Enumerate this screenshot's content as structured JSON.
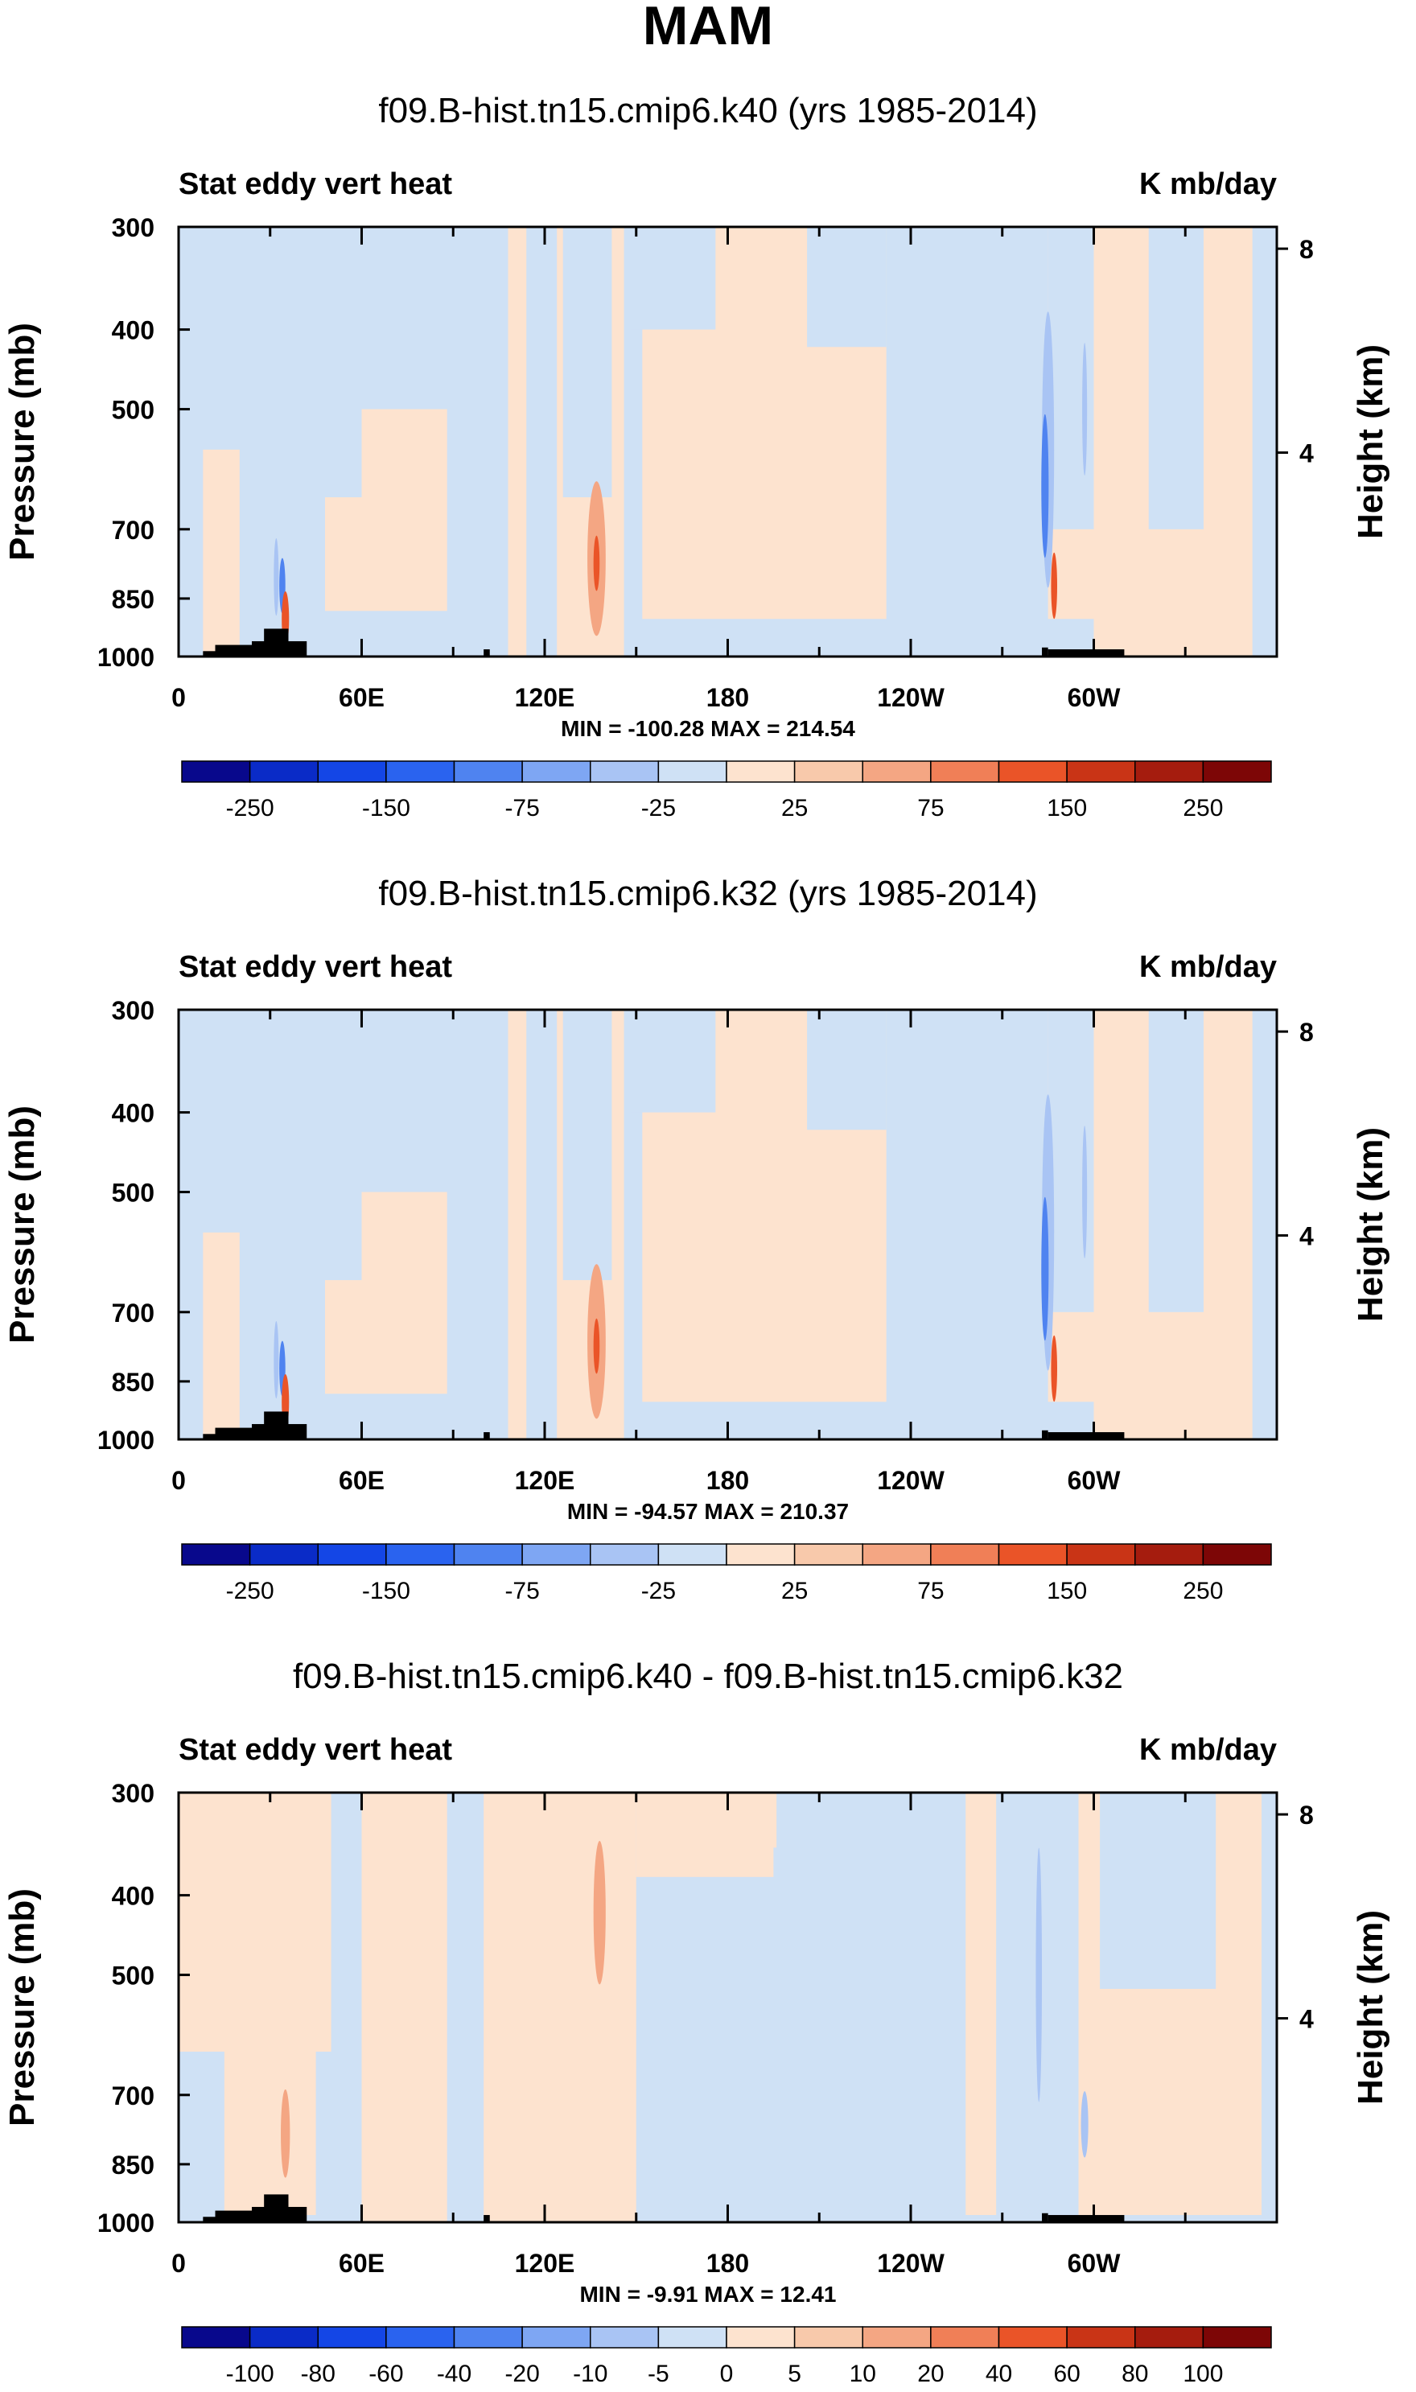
{
  "page_title": "MAM",
  "chart_data": [
    {
      "type": "heatmap",
      "title": "f09.B-hist.tn15.cmip6.k40 (yrs 1985-2014)",
      "left_label": "Stat eddy vert heat",
      "units": "K mb/day",
      "ylabel": "Pressure (mb)",
      "ylabel_right": "Height (km)",
      "x_ticks": [
        "0",
        "60E",
        "120E",
        "180",
        "120W",
        "60W"
      ],
      "x_tick_lon": [
        0,
        60,
        120,
        180,
        240,
        300
      ],
      "x_range": [
        0,
        360
      ],
      "y_ticks": [
        "300",
        "400",
        "500",
        "700",
        "850",
        "1000"
      ],
      "y_values": [
        300,
        400,
        500,
        700,
        850,
        1000
      ],
      "y_range": [
        300,
        1000
      ],
      "y_right_ticks": [
        "8",
        "4"
      ],
      "y_right_values": [
        8,
        4
      ],
      "stats": "MIN = -100.28   MAX = 214.54",
      "min": -100.28,
      "max": 214.54,
      "colorbar_labels": [
        "-250",
        "-150",
        "-75",
        "-25",
        "25",
        "75",
        "150",
        "250"
      ]
    },
    {
      "type": "heatmap",
      "title": "f09.B-hist.tn15.cmip6.k32 (yrs 1985-2014)",
      "left_label": "Stat eddy vert heat",
      "units": "K mb/day",
      "ylabel": "Pressure (mb)",
      "ylabel_right": "Height (km)",
      "x_ticks": [
        "0",
        "60E",
        "120E",
        "180",
        "120W",
        "60W"
      ],
      "x_tick_lon": [
        0,
        60,
        120,
        180,
        240,
        300
      ],
      "x_range": [
        0,
        360
      ],
      "y_ticks": [
        "300",
        "400",
        "500",
        "700",
        "850",
        "1000"
      ],
      "y_values": [
        300,
        400,
        500,
        700,
        850,
        1000
      ],
      "y_range": [
        300,
        1000
      ],
      "y_right_ticks": [
        "8",
        "4"
      ],
      "y_right_values": [
        8,
        4
      ],
      "stats": "MIN = -94.57   MAX = 210.37",
      "min": -94.57,
      "max": 210.37,
      "colorbar_labels": [
        "-250",
        "-150",
        "-75",
        "-25",
        "25",
        "75",
        "150",
        "250"
      ]
    },
    {
      "type": "heatmap",
      "title": "f09.B-hist.tn15.cmip6.k40 - f09.B-hist.tn15.cmip6.k32",
      "left_label": "Stat eddy vert heat",
      "units": "K mb/day",
      "ylabel": "Pressure (mb)",
      "ylabel_right": "Height (km)",
      "x_ticks": [
        "0",
        "60E",
        "120E",
        "180",
        "120W",
        "60W"
      ],
      "x_tick_lon": [
        0,
        60,
        120,
        180,
        240,
        300
      ],
      "x_range": [
        0,
        360
      ],
      "y_ticks": [
        "300",
        "400",
        "500",
        "700",
        "850",
        "1000"
      ],
      "y_values": [
        300,
        400,
        500,
        700,
        850,
        1000
      ],
      "y_range": [
        300,
        1000
      ],
      "y_right_ticks": [
        "8",
        "4"
      ],
      "y_right_values": [
        8,
        4
      ],
      "stats": "MIN =  -9.91   MAX =  12.41",
      "min": -9.91,
      "max": 12.41,
      "colorbar_labels": [
        "-100",
        "-80",
        "-60",
        "-40",
        "-20",
        "-10",
        "-5",
        "0",
        "5",
        "10",
        "20",
        "40",
        "60",
        "80",
        "100"
      ]
    }
  ],
  "colors": {
    "bar16": [
      "#08088c",
      "#0a2bc7",
      "#1446e6",
      "#2a63ef",
      "#4f83f0",
      "#7ea6f3",
      "#a9c4f4",
      "#cfe1f5",
      "#fde3cf",
      "#f8c9ab",
      "#f4a683",
      "#f07f57",
      "#ea5428",
      "#c93416",
      "#a51c0e",
      "#7d0606"
    ],
    "bar16_diff": [
      "#08088c",
      "#0a2bc7",
      "#1446e6",
      "#2a63ef",
      "#4f83f0",
      "#7ea6f3",
      "#a9c4f4",
      "#cfe1f5",
      "#fde3cf",
      "#f8c9ab",
      "#f4a683",
      "#f07f57",
      "#ea5428",
      "#c93416",
      "#a51c0e",
      "#7d0606"
    ],
    "light_blue": "#cfe1f5",
    "light_orange": "#fde3cf",
    "mid_blue": "#a9c4f4",
    "mid_orange": "#f4a683",
    "strong_blue": "#4f83f0",
    "strong_red": "#ea5428",
    "terrain": "#000000"
  }
}
